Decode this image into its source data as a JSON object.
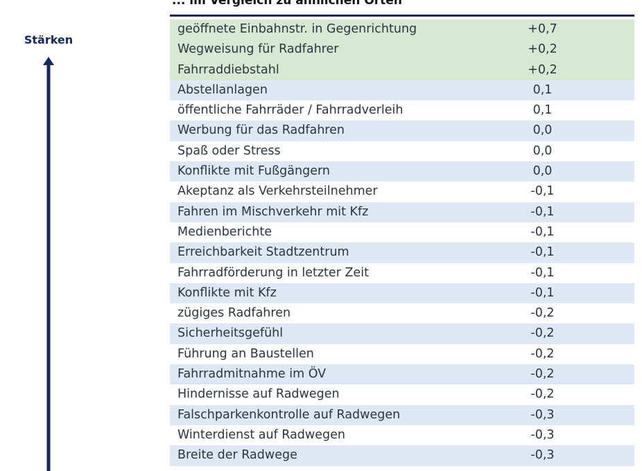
{
  "header": {
    "title": "... im Vergleich zu ähnlichen Orten"
  },
  "side_label": "Stärken",
  "table": {
    "rows": [
      [
        "geöffnete Einbahnstr. in Gegenrichtung",
        "+0,7"
      ],
      [
        "Wegweisung für Radfahrer",
        "+0,2"
      ],
      [
        "Fahrraddiebstahl",
        "+0,2"
      ],
      [
        "Abstellanlagen",
        "0,1"
      ],
      [
        "öffentliche Fahrräder / Fahrradverleih",
        "0,1"
      ],
      [
        "Werbung für das Radfahren",
        "0,0"
      ],
      [
        "Spaß oder Stress",
        "0,0"
      ],
      [
        "Konflikte mit Fußgängern",
        "0,0"
      ],
      [
        "Akeptanz als Verkehrsteilnehmer",
        "-0,1"
      ],
      [
        "Fahren im Mischverkehr mit Kfz",
        "-0,1"
      ],
      [
        "Medienberichte",
        "-0,1"
      ],
      [
        "Erreichbarkeit Stadtzentrum",
        "-0,1"
      ],
      [
        "Fahrradförderung in letzter Zeit",
        "-0,1"
      ],
      [
        "Konflikte mit Kfz",
        "-0,1"
      ],
      [
        "zügiges Radfahren",
        "-0,2"
      ],
      [
        "Sicherheitsgefühl",
        "-0,2"
      ],
      [
        "Führung an Baustellen",
        "-0,2"
      ],
      [
        "Fahrradmitnahme im ÖV",
        "-0,2"
      ],
      [
        "Hindernisse auf Radwegen",
        "-0,2"
      ],
      [
        "Falschparkenkontrolle auf Radwegen",
        "-0,3"
      ],
      [
        "Winterdienst auf Radwegen",
        "-0,3"
      ],
      [
        "Breite der Radwege",
        "-0,3"
      ]
    ]
  }
}
